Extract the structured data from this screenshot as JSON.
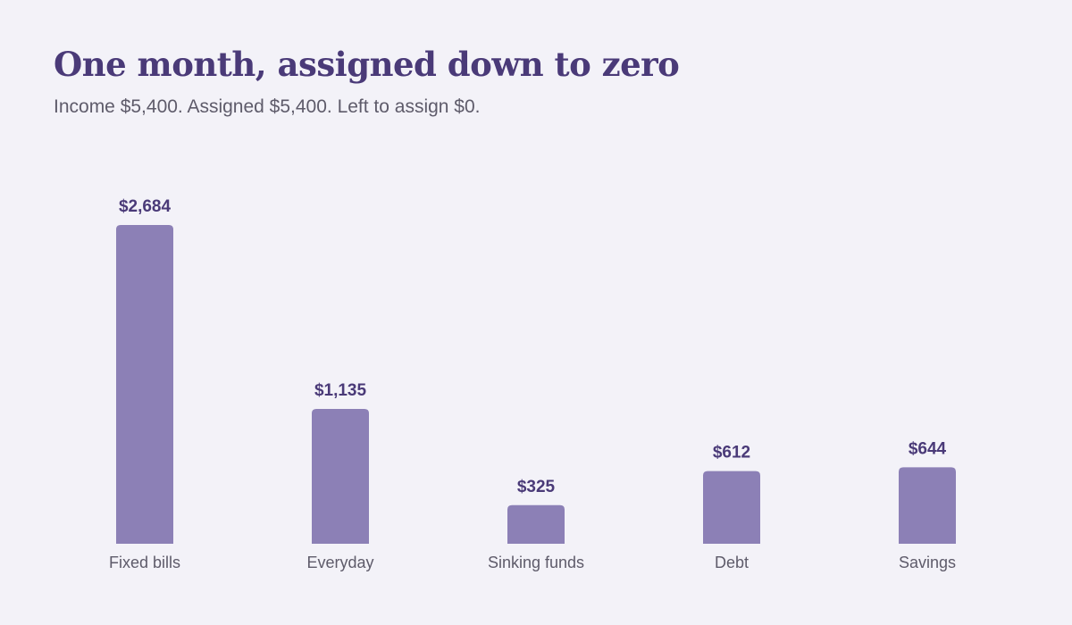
{
  "header": {
    "title": "One month, assigned down to zero",
    "subtitle": "Income $5,400. Assigned $5,400. Left to assign $0."
  },
  "colors": {
    "bar": "#8c80b6",
    "value_label": "#4a3a78",
    "category_label": "#5e5b6a",
    "background": "#f3f2f8"
  },
  "chart_data": {
    "type": "bar",
    "categories": [
      "Fixed bills",
      "Everyday",
      "Sinking funds",
      "Debt",
      "Savings"
    ],
    "values": [
      2684,
      1135,
      325,
      612,
      644
    ],
    "value_labels": [
      "$2,684",
      "$1,135",
      "$325",
      "$612",
      "$644"
    ],
    "title": "One month, assigned down to zero",
    "subtitle": "Income $5,400. Assigned $5,400. Left to assign $0.",
    "xlabel": "",
    "ylabel": "",
    "grid": false,
    "legend": "none"
  }
}
